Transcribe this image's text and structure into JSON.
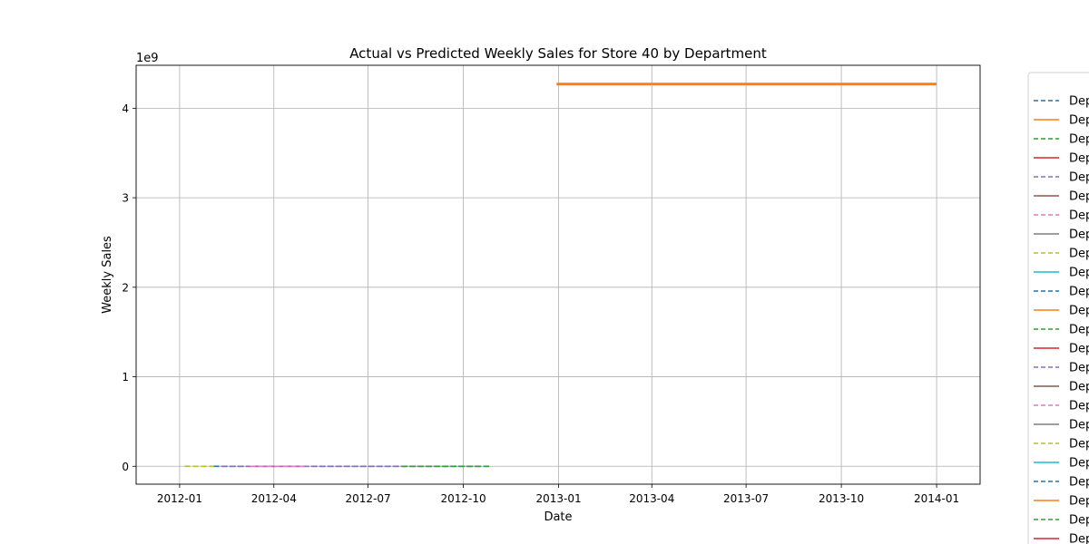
{
  "chart_data": {
    "type": "line",
    "title": "Actual vs Predicted Weekly Sales for Store 40 by Department",
    "xlabel": "Date",
    "ylabel": "Weekly Sales",
    "y_offset_label": "1e9",
    "x_tick_labels": [
      "2012-01",
      "2012-04",
      "2012-07",
      "2012-10",
      "2013-01",
      "2013-04",
      "2013-07",
      "2013-10",
      "2014-01"
    ],
    "x_tick_values": [
      "2012-01-01",
      "2012-04-01",
      "2012-07-01",
      "2012-10-01",
      "2013-01-01",
      "2013-04-01",
      "2013-07-01",
      "2013-10-01",
      "2014-01-01"
    ],
    "xlim": [
      "2011-11-20",
      "2014-02-12"
    ],
    "y_tick_labels": [
      "0",
      "1",
      "2",
      "3",
      "4"
    ],
    "y_tick_values": [
      0,
      1000000000,
      2000000000,
      3000000000,
      4000000000
    ],
    "ylim": [
      -200000000,
      4480000000
    ],
    "grid": true,
    "legend_placement": "right outside",
    "legend_entries": [
      {
        "label": "Dep",
        "style": "dashed",
        "color": "#1f77b4"
      },
      {
        "label": "Dep",
        "style": "solid",
        "color": "#ff7f0e"
      },
      {
        "label": "Dep",
        "style": "dashed",
        "color": "#2ca02c"
      },
      {
        "label": "Dep",
        "style": "solid",
        "color": "#d62728"
      },
      {
        "label": "Dep",
        "style": "dashed",
        "color": "#9467bd"
      },
      {
        "label": "Dep",
        "style": "solid",
        "color": "#8c564b"
      },
      {
        "label": "Dep",
        "style": "dashed",
        "color": "#e377c2"
      },
      {
        "label": "Dep",
        "style": "solid",
        "color": "#7f7f7f"
      },
      {
        "label": "Dep",
        "style": "dashed",
        "color": "#bcbd22"
      },
      {
        "label": "Dep",
        "style": "solid",
        "color": "#17becf"
      },
      {
        "label": "Dep",
        "style": "dashed",
        "color": "#1f77b4"
      },
      {
        "label": "Dep",
        "style": "solid",
        "color": "#ff7f0e"
      },
      {
        "label": "Dep",
        "style": "dashed",
        "color": "#2ca02c"
      },
      {
        "label": "Dep",
        "style": "solid",
        "color": "#d62728"
      },
      {
        "label": "Dep",
        "style": "dashed",
        "color": "#9467bd"
      },
      {
        "label": "Dep",
        "style": "solid",
        "color": "#8c564b"
      },
      {
        "label": "Dep",
        "style": "dashed",
        "color": "#e377c2"
      },
      {
        "label": "Dep",
        "style": "solid",
        "color": "#7f7f7f"
      },
      {
        "label": "Dep",
        "style": "dashed",
        "color": "#bcbd22"
      },
      {
        "label": "Dep",
        "style": "solid",
        "color": "#17becf"
      },
      {
        "label": "Dep",
        "style": "dashed",
        "color": "#1f77b4"
      },
      {
        "label": "Dep",
        "style": "solid",
        "color": "#ff7f0e"
      },
      {
        "label": "Dep",
        "style": "dashed",
        "color": "#2ca02c"
      },
      {
        "label": "Dep",
        "style": "solid",
        "color": "#d62728"
      }
    ],
    "series": [
      {
        "style": "dashed",
        "color": "#bcbd22",
        "x": [
          "2012-01-06",
          "2012-02-03"
        ],
        "y": [
          0,
          0
        ]
      },
      {
        "style": "dashed",
        "color": "#1f77b4",
        "x": [
          "2012-02-03",
          "2012-10-26"
        ],
        "y": [
          0,
          0
        ]
      },
      {
        "style": "dashed",
        "color": "#9467bd",
        "x": [
          "2012-02-10",
          "2012-10-19"
        ],
        "y": [
          0,
          0
        ]
      },
      {
        "style": "dashed",
        "color": "#e377c2",
        "x": [
          "2012-03-09",
          "2012-05-04"
        ],
        "y": [
          0,
          0
        ]
      },
      {
        "style": "dashed",
        "color": "#2ca02c",
        "x": [
          "2012-08-03",
          "2012-10-26"
        ],
        "y": [
          0,
          0
        ]
      },
      {
        "style": "solid",
        "color": "#ff7f0e",
        "x": [
          "2012-12-30",
          "2014-01-01"
        ],
        "y": [
          4270000000,
          4270000000
        ]
      }
    ]
  }
}
